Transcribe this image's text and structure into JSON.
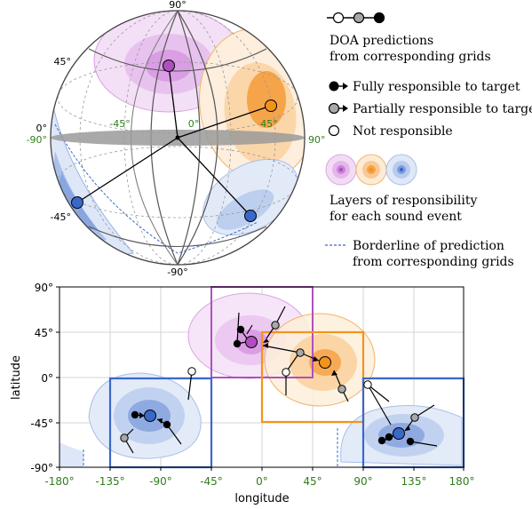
{
  "sphere": {
    "lat_labels": {
      "top": "90°",
      "north45": "45°",
      "equator": "0°",
      "south45": "-45°",
      "bottom": "-90°"
    },
    "lon_labels": {
      "minus90": "-90°",
      "minus45": "-45°",
      "zero": "0°",
      "plus45": "45°",
      "plus90": "90°"
    }
  },
  "legend": {
    "doa_line1": "DOA predictions",
    "doa_line2": "from corresponding grids",
    "fully": "Fully responsible to target",
    "partially": "Partially responsible to target",
    "not": "Not responsible",
    "layers_line1": "Layers of responsibility",
    "layers_line2": "for each sound event",
    "border_line1": "Borderline of prediction",
    "border_line2": "from corresponding grids",
    "colors": {
      "purple": "#b04fc0",
      "orange": "#f2941c",
      "blue": "#3a68c8",
      "gray": "#a8a8a8"
    }
  },
  "map": {
    "xlabel": "longitude",
    "ylabel": "latitude",
    "xticks": [
      "-180°",
      "-135°",
      "-90°",
      "-45°",
      "0°",
      "45°",
      "90°",
      "135°",
      "180°"
    ],
    "yticks": [
      "90°",
      "45°",
      "0°",
      "-45°",
      "-90°"
    ]
  }
}
